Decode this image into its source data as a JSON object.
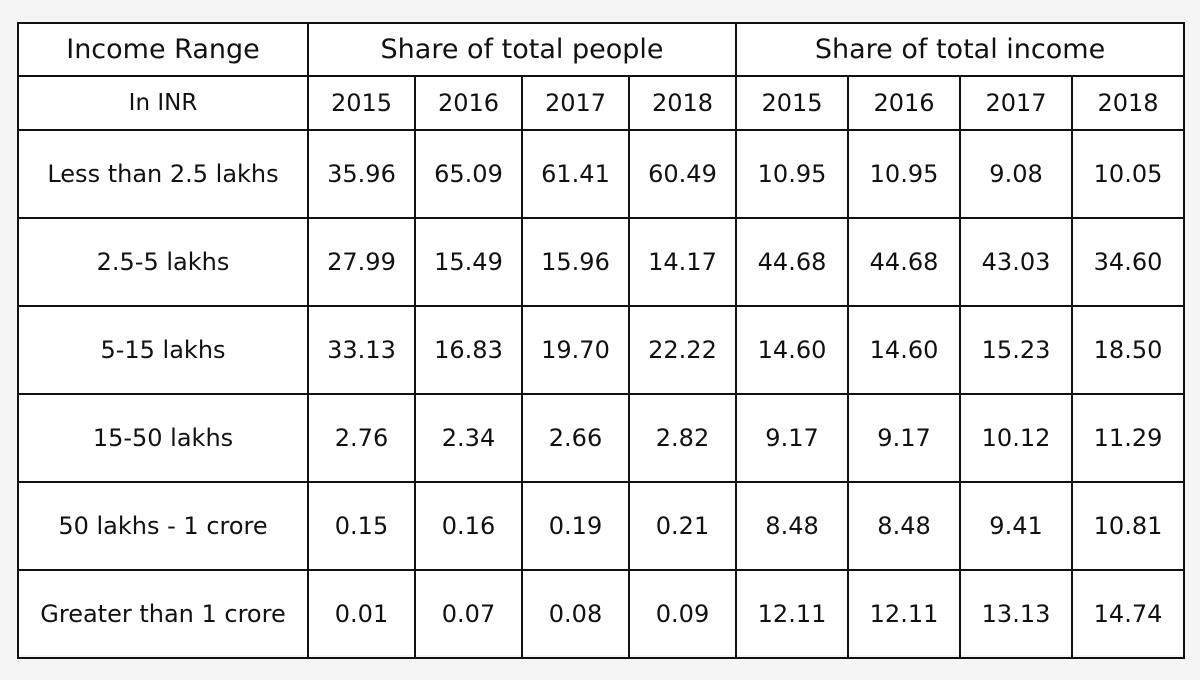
{
  "table": {
    "header": {
      "income_range": "Income Range",
      "people_group": "Share of total people",
      "income_group": "Share of total income",
      "unit": "In INR",
      "years": [
        "2015",
        "2016",
        "2017",
        "2018"
      ]
    },
    "rows": [
      {
        "label": "Less than 2.5 lakhs",
        "people": [
          "35.96",
          "65.09",
          "61.41",
          "60.49"
        ],
        "income": [
          "10.95",
          "10.95",
          "9.08",
          "10.05"
        ]
      },
      {
        "label": "2.5-5 lakhs",
        "people": [
          "27.99",
          "15.49",
          "15.96",
          "14.17"
        ],
        "income": [
          "44.68",
          "44.68",
          "43.03",
          "34.60"
        ]
      },
      {
        "label": "5-15 lakhs",
        "people": [
          "33.13",
          "16.83",
          "19.70",
          "22.22"
        ],
        "income": [
          "14.60",
          "14.60",
          "15.23",
          "18.50"
        ]
      },
      {
        "label": "15-50 lakhs",
        "people": [
          "2.76",
          "2.34",
          "2.66",
          "2.82"
        ],
        "income": [
          "9.17",
          "9.17",
          "10.12",
          "11.29"
        ]
      },
      {
        "label": "50 lakhs - 1 crore",
        "people": [
          "0.15",
          "0.16",
          "0.19",
          "0.21"
        ],
        "income": [
          "8.48",
          "8.48",
          "9.41",
          "10.81"
        ]
      },
      {
        "label": "Greater than 1 crore",
        "people": [
          "0.01",
          "0.07",
          "0.08",
          "0.09"
        ],
        "income": [
          "12.11",
          "12.11",
          "13.13",
          "14.74"
        ]
      }
    ]
  }
}
